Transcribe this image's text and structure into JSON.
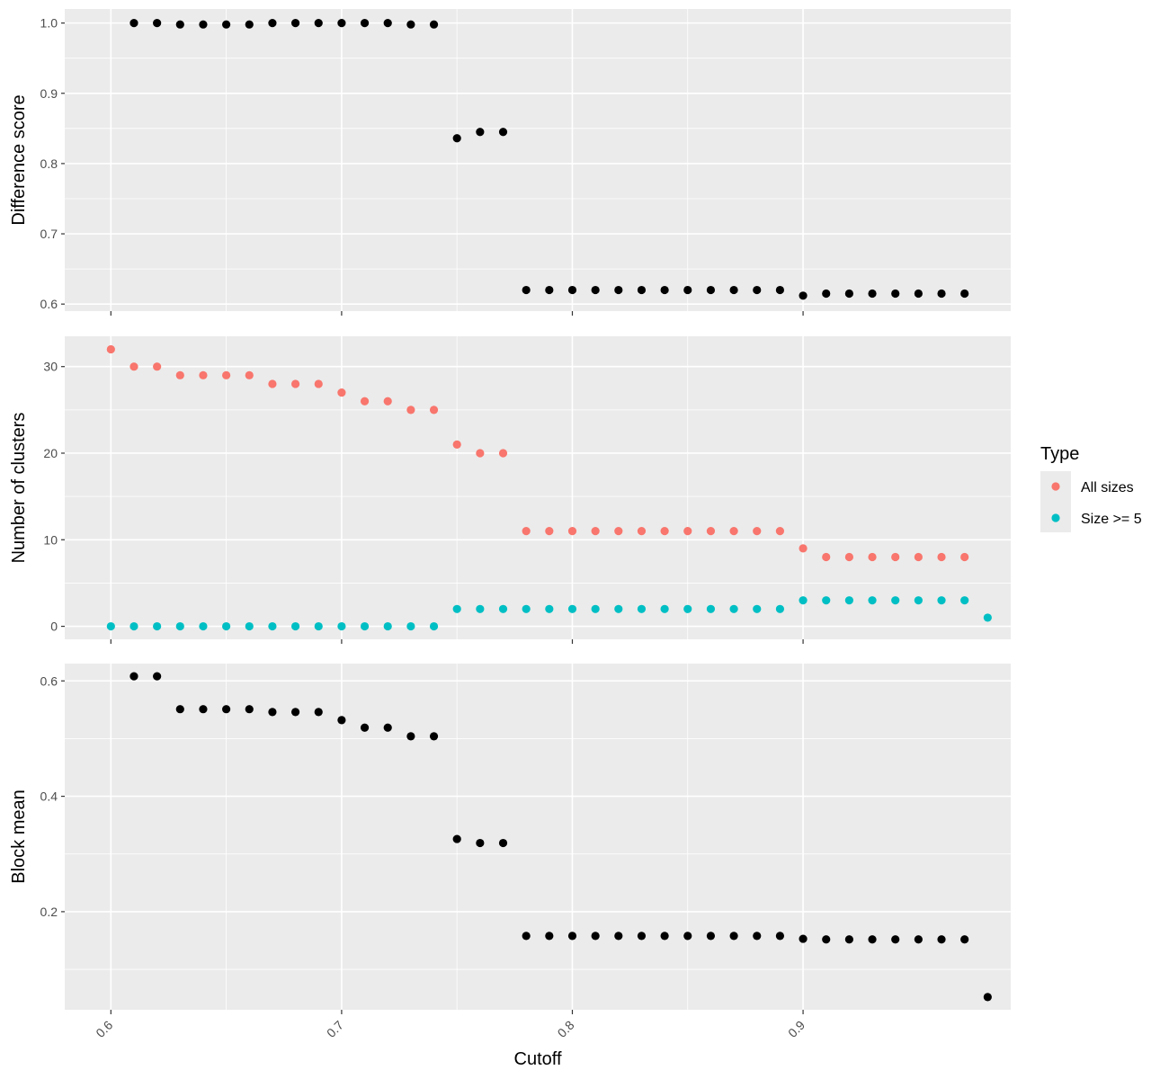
{
  "chart_data": {
    "type": "scatter",
    "xlabel": "Cutoff",
    "x_ticks": [
      0.6,
      0.7,
      0.8,
      0.9
    ],
    "x_tick_labels": [
      "0.6",
      "0.7",
      "0.8",
      "0.9"
    ],
    "xlim": [
      0.58,
      0.99
    ],
    "legend": {
      "title": "Type",
      "position": "right",
      "entries": [
        {
          "name": "All sizes",
          "color": "#F8766D"
        },
        {
          "name": "Size >= 5",
          "color": "#00BFC4"
        }
      ]
    },
    "panels": [
      {
        "id": "difference-score",
        "ylabel": "Difference score",
        "ylim": [
          0.59,
          1.02
        ],
        "y_ticks": [
          0.6,
          0.7,
          0.8,
          0.9,
          1.0
        ],
        "y_tick_labels": [
          "0.6",
          "0.7",
          "0.8",
          "0.9",
          "1.0"
        ],
        "y_minor": [
          0.65,
          0.75,
          0.85,
          0.95
        ],
        "series": [
          {
            "color": "#000000",
            "points": [
              [
                0.61,
                1.0
              ],
              [
                0.62,
                1.0
              ],
              [
                0.63,
                0.998
              ],
              [
                0.64,
                0.998
              ],
              [
                0.65,
                0.998
              ],
              [
                0.66,
                0.998
              ],
              [
                0.67,
                1.0
              ],
              [
                0.68,
                1.0
              ],
              [
                0.69,
                1.0
              ],
              [
                0.7,
                1.0
              ],
              [
                0.71,
                1.0
              ],
              [
                0.72,
                1.0
              ],
              [
                0.73,
                0.998
              ],
              [
                0.74,
                0.998
              ],
              [
                0.75,
                0.836
              ],
              [
                0.76,
                0.845
              ],
              [
                0.77,
                0.845
              ],
              [
                0.78,
                0.62
              ],
              [
                0.79,
                0.62
              ],
              [
                0.8,
                0.62
              ],
              [
                0.81,
                0.62
              ],
              [
                0.82,
                0.62
              ],
              [
                0.83,
                0.62
              ],
              [
                0.84,
                0.62
              ],
              [
                0.85,
                0.62
              ],
              [
                0.86,
                0.62
              ],
              [
                0.87,
                0.62
              ],
              [
                0.88,
                0.62
              ],
              [
                0.89,
                0.62
              ],
              [
                0.9,
                0.612
              ],
              [
                0.91,
                0.615
              ],
              [
                0.92,
                0.615
              ],
              [
                0.93,
                0.615
              ],
              [
                0.94,
                0.615
              ],
              [
                0.95,
                0.615
              ],
              [
                0.96,
                0.615
              ],
              [
                0.97,
                0.615
              ]
            ]
          }
        ]
      },
      {
        "id": "number-of-clusters",
        "ylabel": "Number of clusters",
        "ylim": [
          -1.5,
          33.5
        ],
        "y_ticks": [
          0,
          10,
          20,
          30
        ],
        "y_tick_labels": [
          "0",
          "10",
          "20",
          "30"
        ],
        "y_minor": [
          5,
          15,
          25
        ],
        "series": [
          {
            "name": "All sizes",
            "color": "#F8766D",
            "points": [
              [
                0.6,
                32
              ],
              [
                0.61,
                30
              ],
              [
                0.62,
                30
              ],
              [
                0.63,
                29
              ],
              [
                0.64,
                29
              ],
              [
                0.65,
                29
              ],
              [
                0.66,
                29
              ],
              [
                0.67,
                28
              ],
              [
                0.68,
                28
              ],
              [
                0.69,
                28
              ],
              [
                0.7,
                27
              ],
              [
                0.71,
                26
              ],
              [
                0.72,
                26
              ],
              [
                0.73,
                25
              ],
              [
                0.74,
                25
              ],
              [
                0.75,
                21
              ],
              [
                0.76,
                20
              ],
              [
                0.77,
                20
              ],
              [
                0.78,
                11
              ],
              [
                0.79,
                11
              ],
              [
                0.8,
                11
              ],
              [
                0.81,
                11
              ],
              [
                0.82,
                11
              ],
              [
                0.83,
                11
              ],
              [
                0.84,
                11
              ],
              [
                0.85,
                11
              ],
              [
                0.86,
                11
              ],
              [
                0.87,
                11
              ],
              [
                0.88,
                11
              ],
              [
                0.89,
                11
              ],
              [
                0.9,
                9
              ],
              [
                0.91,
                8
              ],
              [
                0.92,
                8
              ],
              [
                0.93,
                8
              ],
              [
                0.94,
                8
              ],
              [
                0.95,
                8
              ],
              [
                0.96,
                8
              ],
              [
                0.97,
                8
              ]
            ]
          },
          {
            "name": "Size >= 5",
            "color": "#00BFC4",
            "points": [
              [
                0.6,
                0
              ],
              [
                0.61,
                0
              ],
              [
                0.62,
                0
              ],
              [
                0.63,
                0
              ],
              [
                0.64,
                0
              ],
              [
                0.65,
                0
              ],
              [
                0.66,
                0
              ],
              [
                0.67,
                0
              ],
              [
                0.68,
                0
              ],
              [
                0.69,
                0
              ],
              [
                0.7,
                0
              ],
              [
                0.71,
                0
              ],
              [
                0.72,
                0
              ],
              [
                0.73,
                0
              ],
              [
                0.74,
                0
              ],
              [
                0.75,
                2
              ],
              [
                0.76,
                2
              ],
              [
                0.77,
                2
              ],
              [
                0.78,
                2
              ],
              [
                0.79,
                2
              ],
              [
                0.8,
                2
              ],
              [
                0.81,
                2
              ],
              [
                0.82,
                2
              ],
              [
                0.83,
                2
              ],
              [
                0.84,
                2
              ],
              [
                0.85,
                2
              ],
              [
                0.86,
                2
              ],
              [
                0.87,
                2
              ],
              [
                0.88,
                2
              ],
              [
                0.89,
                2
              ],
              [
                0.9,
                3
              ],
              [
                0.91,
                3
              ],
              [
                0.92,
                3
              ],
              [
                0.93,
                3
              ],
              [
                0.94,
                3
              ],
              [
                0.95,
                3
              ],
              [
                0.96,
                3
              ],
              [
                0.97,
                3
              ],
              [
                0.98,
                1
              ]
            ]
          }
        ]
      },
      {
        "id": "block-mean",
        "ylabel": "Block mean",
        "ylim": [
          0.03,
          0.63
        ],
        "y_ticks": [
          0.2,
          0.4,
          0.6
        ],
        "y_tick_labels": [
          "0.2",
          "0.4",
          "0.6"
        ],
        "y_minor": [
          0.1,
          0.3,
          0.5
        ],
        "series": [
          {
            "color": "#000000",
            "points": [
              [
                0.61,
                0.608
              ],
              [
                0.62,
                0.608
              ],
              [
                0.63,
                0.551
              ],
              [
                0.64,
                0.551
              ],
              [
                0.65,
                0.551
              ],
              [
                0.66,
                0.551
              ],
              [
                0.67,
                0.546
              ],
              [
                0.68,
                0.546
              ],
              [
                0.69,
                0.546
              ],
              [
                0.7,
                0.532
              ],
              [
                0.71,
                0.519
              ],
              [
                0.72,
                0.519
              ],
              [
                0.73,
                0.504
              ],
              [
                0.74,
                0.504
              ],
              [
                0.75,
                0.326
              ],
              [
                0.76,
                0.319
              ],
              [
                0.77,
                0.319
              ],
              [
                0.78,
                0.158
              ],
              [
                0.79,
                0.158
              ],
              [
                0.8,
                0.158
              ],
              [
                0.81,
                0.158
              ],
              [
                0.82,
                0.158
              ],
              [
                0.83,
                0.158
              ],
              [
                0.84,
                0.158
              ],
              [
                0.85,
                0.158
              ],
              [
                0.86,
                0.158
              ],
              [
                0.87,
                0.158
              ],
              [
                0.88,
                0.158
              ],
              [
                0.89,
                0.158
              ],
              [
                0.9,
                0.153
              ],
              [
                0.91,
                0.152
              ],
              [
                0.92,
                0.152
              ],
              [
                0.93,
                0.152
              ],
              [
                0.94,
                0.152
              ],
              [
                0.95,
                0.152
              ],
              [
                0.96,
                0.152
              ],
              [
                0.97,
                0.152
              ],
              [
                0.98,
                0.052
              ]
            ]
          }
        ]
      }
    ]
  }
}
